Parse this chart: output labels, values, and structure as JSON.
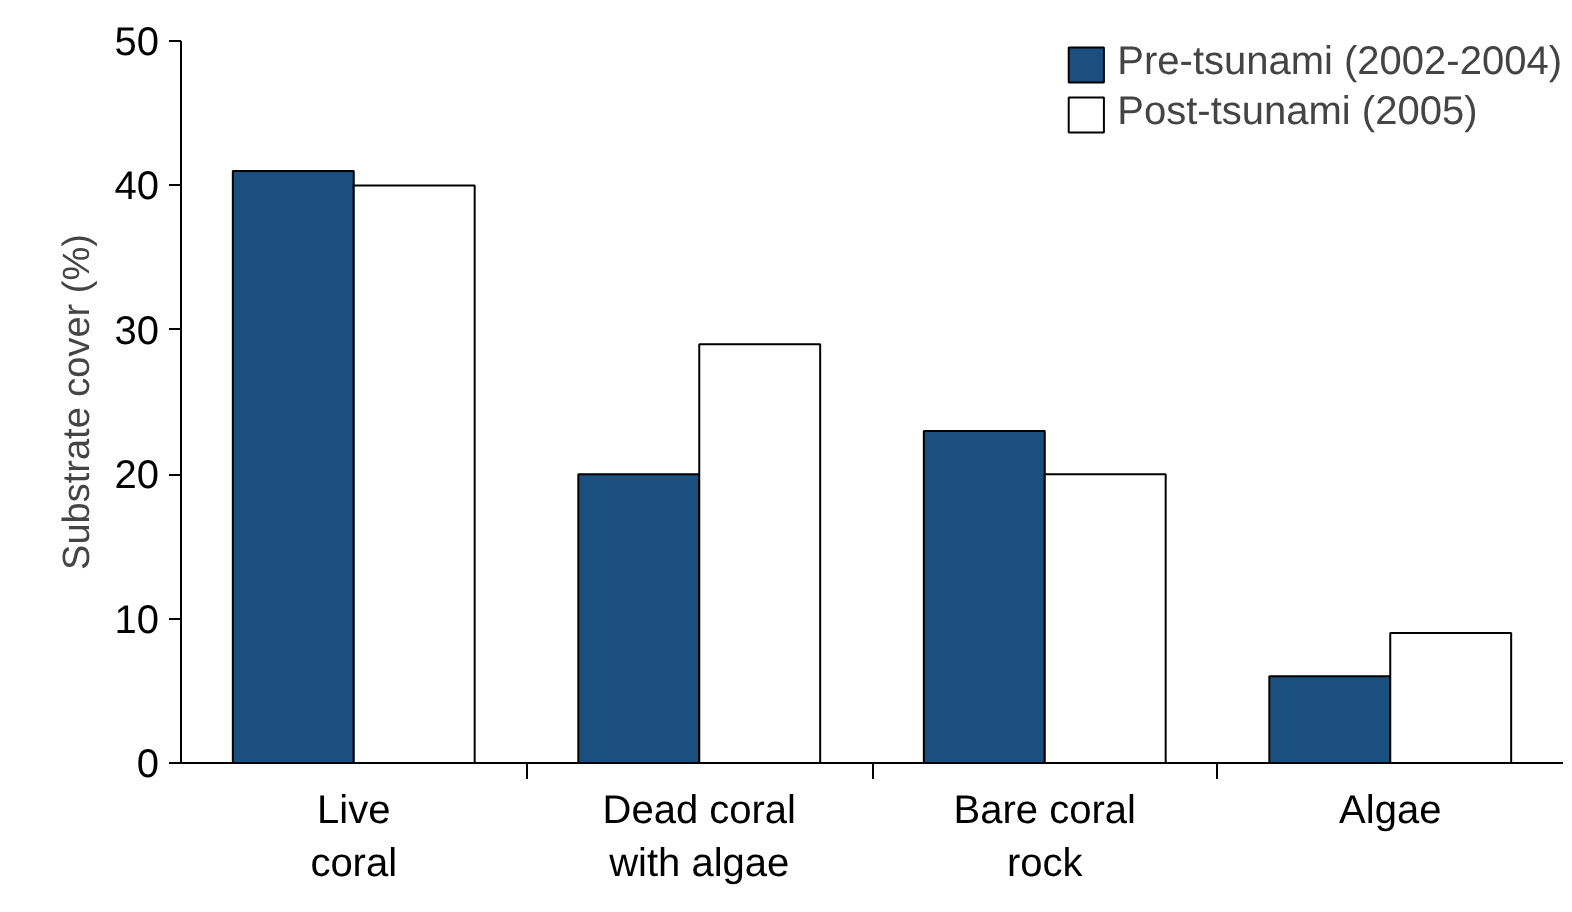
{
  "chart_data": {
    "type": "bar",
    "ylabel": "Substrate cover (%)",
    "categories": [
      "Live\ncoral",
      "Dead coral\nwith algae",
      "Bare coral\nrock",
      "Algae"
    ],
    "series": [
      {
        "name": "Pre-tsunami (2002-2004)",
        "color": "#1a4f80",
        "values": [
          41,
          20,
          23,
          6
        ]
      },
      {
        "name": "Post-tsunami (2005)",
        "color": "#ffffff",
        "values": [
          40,
          29,
          20,
          9
        ]
      }
    ],
    "ylim": [
      0,
      50
    ],
    "yticks": [
      0,
      10,
      20,
      30,
      40,
      50
    ],
    "grid": false,
    "legend": "top right"
  }
}
